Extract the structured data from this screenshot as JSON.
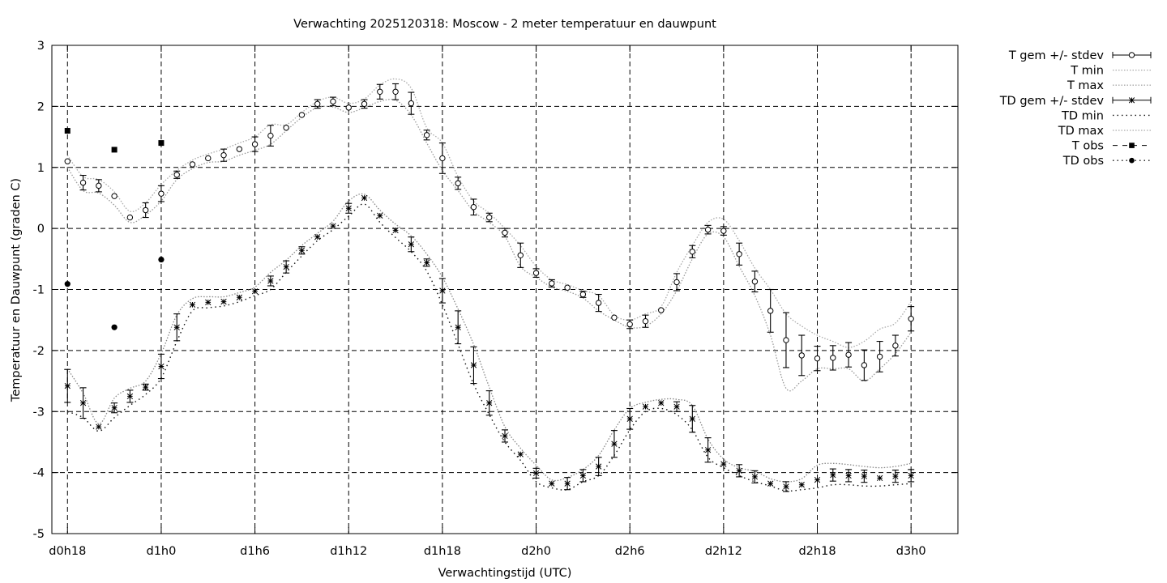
{
  "chart_data": {
    "type": "line",
    "title": "Verwachting 2025120318: Moscow - 2 meter temperatuur en dauwpunt",
    "xlabel": "Verwachtingstijd (UTC)",
    "ylabel": "Temperatuur en Dauwpunt (graden C)",
    "xlim": [
      -1,
      57
    ],
    "ylim": [
      -5,
      3
    ],
    "x_ticks": [
      {
        "x": 0,
        "label": "d0h18"
      },
      {
        "x": 6,
        "label": "d1h0"
      },
      {
        "x": 12,
        "label": "d1h6"
      },
      {
        "x": 18,
        "label": "d1h12"
      },
      {
        "x": 24,
        "label": "d1h18"
      },
      {
        "x": 30,
        "label": "d2h0"
      },
      {
        "x": 36,
        "label": "d2h6"
      },
      {
        "x": 42,
        "label": "d2h12"
      },
      {
        "x": 48,
        "label": "d2h18"
      },
      {
        "x": 54,
        "label": "d3h0"
      }
    ],
    "y_ticks": [
      3,
      2,
      1,
      0,
      -1,
      -2,
      -3,
      -4,
      -5
    ],
    "grid": true,
    "legend_position": "outside-right",
    "legend": [
      {
        "label": "T gem +/- stdev",
        "kind": "errbar",
        "marker": "circle"
      },
      {
        "label": "T min",
        "kind": "dotted"
      },
      {
        "label": "T max",
        "kind": "dotted"
      },
      {
        "label": "TD gem +/- stdev",
        "kind": "errbar",
        "marker": "star"
      },
      {
        "label": "TD min",
        "kind": "sparse-dotted"
      },
      {
        "label": "TD max",
        "kind": "dotted"
      },
      {
        "label": "T obs",
        "kind": "dashed",
        "marker": "square"
      },
      {
        "label": "TD obs",
        "kind": "sparse-dotted",
        "marker": "dot"
      }
    ],
    "series": {
      "t_mean": {
        "x": [
          0,
          1,
          2,
          3,
          4,
          5,
          6,
          7,
          8,
          9,
          10,
          11,
          12,
          13,
          14,
          15,
          16,
          17,
          18,
          19,
          20,
          21,
          22,
          23,
          24,
          25,
          26,
          27,
          28,
          29,
          30,
          31,
          32,
          33,
          34,
          35,
          36,
          37,
          38,
          39,
          40,
          41,
          42,
          43,
          44,
          45,
          46,
          47,
          48,
          49,
          50,
          51,
          52,
          53,
          54
        ],
        "y": [
          1.1,
          0.75,
          0.7,
          0.53,
          0.18,
          0.3,
          0.57,
          0.88,
          1.05,
          1.15,
          1.2,
          1.3,
          1.38,
          1.52,
          1.65,
          1.86,
          2.04,
          2.08,
          1.98,
          2.04,
          2.24,
          2.24,
          2.05,
          1.53,
          1.15,
          0.74,
          0.35,
          0.18,
          -0.07,
          -0.44,
          -0.73,
          -0.9,
          -0.97,
          -1.08,
          -1.22,
          -1.46,
          -1.57,
          -1.52,
          -1.34,
          -0.88,
          -0.38,
          -0.02,
          -0.04,
          -0.42,
          -0.87,
          -1.35,
          -1.83,
          -2.08,
          -2.13,
          -2.12,
          -2.07,
          -2.24,
          -2.1,
          -1.92,
          -1.48
        ],
        "sd": [
          0,
          0.12,
          0.1,
          0,
          0,
          0.12,
          0.13,
          0.06,
          0,
          0,
          0.1,
          0,
          0.12,
          0.17,
          0,
          0,
          0.07,
          0.07,
          0,
          0.07,
          0.12,
          0.13,
          0.18,
          0.08,
          0.25,
          0.1,
          0.13,
          0.07,
          0.07,
          0.2,
          0.07,
          0.06,
          0,
          0.05,
          0.14,
          0,
          0.07,
          0.1,
          0,
          0.14,
          0.1,
          0.07,
          0.07,
          0.18,
          0.17,
          0.35,
          0.45,
          0.33,
          0.2,
          0.2,
          0.2,
          0.25,
          0.25,
          0.17,
          0.2
        ]
      },
      "t_min": {
        "x": [
          0,
          1,
          2,
          3,
          4,
          5,
          6,
          7,
          8,
          9,
          10,
          11,
          12,
          13,
          14,
          15,
          16,
          17,
          18,
          19,
          20,
          21,
          22,
          23,
          24,
          25,
          26,
          27,
          28,
          29,
          30,
          31,
          32,
          33,
          34,
          35,
          36,
          37,
          38,
          39,
          40,
          41,
          42,
          43,
          44,
          45,
          46,
          47,
          48,
          49,
          50,
          51,
          52,
          53,
          54
        ],
        "y": [
          1.0,
          0.62,
          0.58,
          0.38,
          0.1,
          0.22,
          0.45,
          0.8,
          0.98,
          1.08,
          1.1,
          1.2,
          1.28,
          1.38,
          1.6,
          1.82,
          1.98,
          1.99,
          1.9,
          1.98,
          2.08,
          2.1,
          1.86,
          1.4,
          0.95,
          0.62,
          0.28,
          0.1,
          -0.13,
          -0.62,
          -0.8,
          -0.96,
          -1.03,
          -1.14,
          -1.35,
          -1.5,
          -1.62,
          -1.6,
          -1.4,
          -1.02,
          -0.5,
          -0.09,
          -0.14,
          -0.62,
          -1.1,
          -1.75,
          -2.62,
          -2.5,
          -2.3,
          -2.3,
          -2.3,
          -2.5,
          -2.3,
          -2.05,
          -1.7
        ]
      },
      "t_max": {
        "x": [
          0,
          1,
          2,
          3,
          4,
          5,
          6,
          7,
          8,
          9,
          10,
          11,
          12,
          13,
          14,
          15,
          16,
          17,
          18,
          19,
          20,
          21,
          22,
          23,
          24,
          25,
          26,
          27,
          28,
          29,
          30,
          31,
          32,
          33,
          34,
          35,
          36,
          37,
          38,
          39,
          40,
          41,
          42,
          43,
          44,
          45,
          46,
          47,
          48,
          49,
          50,
          51,
          52,
          53,
          54
        ],
        "y": [
          1.2,
          0.85,
          0.8,
          0.6,
          0.28,
          0.42,
          0.72,
          0.95,
          1.12,
          1.22,
          1.3,
          1.4,
          1.5,
          1.7,
          1.7,
          1.9,
          2.08,
          2.15,
          2.05,
          2.12,
          2.35,
          2.45,
          2.3,
          1.65,
          1.4,
          0.85,
          0.45,
          0.25,
          0.0,
          -0.28,
          -0.62,
          -0.84,
          -0.92,
          -1.02,
          -1.1,
          -1.42,
          -1.5,
          -1.4,
          -1.28,
          -0.72,
          -0.28,
          0.1,
          0.15,
          -0.2,
          -0.65,
          -1.0,
          -1.4,
          -1.6,
          -1.75,
          -1.85,
          -1.95,
          -1.85,
          -1.65,
          -1.55,
          -1.2
        ]
      },
      "td_mean": {
        "x": [
          0,
          1,
          2,
          3,
          4,
          5,
          6,
          7,
          8,
          9,
          10,
          11,
          12,
          13,
          14,
          15,
          16,
          17,
          18,
          19,
          20,
          21,
          22,
          23,
          24,
          25,
          26,
          27,
          28,
          29,
          30,
          31,
          32,
          33,
          34,
          35,
          36,
          37,
          38,
          39,
          40,
          41,
          42,
          43,
          44,
          45,
          46,
          47,
          48,
          49,
          50,
          51,
          52,
          53,
          54
        ],
        "y": [
          -2.58,
          -2.86,
          -3.25,
          -2.94,
          -2.75,
          -2.6,
          -2.26,
          -1.62,
          -1.25,
          -1.21,
          -1.2,
          -1.13,
          -1.03,
          -0.86,
          -0.63,
          -0.36,
          -0.14,
          0.04,
          0.33,
          0.5,
          0.21,
          -0.03,
          -0.26,
          -0.56,
          -1.02,
          -1.62,
          -2.24,
          -2.86,
          -3.4,
          -3.7,
          -4.01,
          -4.18,
          -4.18,
          -4.05,
          -3.9,
          -3.53,
          -3.12,
          -2.92,
          -2.86,
          -2.92,
          -3.12,
          -3.63,
          -3.86,
          -3.97,
          -4.07,
          -4.18,
          -4.23,
          -4.2,
          -4.12,
          -4.04,
          -4.05,
          -4.06,
          -4.09,
          -4.06,
          -4.05
        ]
      },
      "td_min": {
        "x": [
          0,
          1,
          2,
          3,
          4,
          5,
          6,
          7,
          8,
          9,
          10,
          11,
          12,
          13,
          14,
          15,
          16,
          17,
          18,
          19,
          20,
          21,
          22,
          23,
          24,
          25,
          26,
          27,
          28,
          29,
          30,
          31,
          32,
          33,
          34,
          35,
          36,
          37,
          38,
          39,
          40,
          41,
          42,
          43,
          44,
          45,
          46,
          47,
          48,
          49,
          50,
          51,
          52,
          53,
          54
        ],
        "y": [
          -3.0,
          -3.1,
          -3.32,
          -3.1,
          -2.9,
          -2.72,
          -2.45,
          -1.85,
          -1.35,
          -1.3,
          -1.27,
          -1.2,
          -1.1,
          -1.0,
          -0.72,
          -0.45,
          -0.2,
          -0.02,
          0.2,
          0.4,
          0.1,
          -0.15,
          -0.38,
          -0.7,
          -1.25,
          -1.9,
          -2.55,
          -3.05,
          -3.5,
          -3.8,
          -4.15,
          -4.25,
          -4.28,
          -4.15,
          -4.05,
          -3.72,
          -3.3,
          -3.0,
          -2.95,
          -3.05,
          -3.3,
          -3.75,
          -3.92,
          -4.05,
          -4.15,
          -4.22,
          -4.3,
          -4.28,
          -4.25,
          -4.2,
          -4.2,
          -4.22,
          -4.22,
          -4.2,
          -4.18
        ]
      },
      "td_max": {
        "x": [
          0,
          1,
          2,
          3,
          4,
          5,
          6,
          7,
          8,
          9,
          10,
          11,
          12,
          13,
          14,
          15,
          16,
          17,
          18,
          19,
          20,
          21,
          22,
          23,
          24,
          25,
          26,
          27,
          28,
          29,
          30,
          31,
          32,
          33,
          34,
          35,
          36,
          37,
          38,
          39,
          40,
          41,
          42,
          43,
          44,
          45,
          46,
          47,
          48,
          49,
          50,
          51,
          52,
          53,
          54
        ],
        "y": [
          -2.3,
          -2.7,
          -3.2,
          -2.78,
          -2.62,
          -2.5,
          -2.05,
          -1.42,
          -1.15,
          -1.12,
          -1.12,
          -1.05,
          -0.96,
          -0.72,
          -0.52,
          -0.28,
          -0.08,
          0.12,
          0.45,
          0.56,
          0.3,
          0.07,
          -0.12,
          -0.42,
          -0.8,
          -1.32,
          -1.9,
          -2.6,
          -3.25,
          -3.6,
          -3.88,
          -4.12,
          -4.08,
          -3.95,
          -3.72,
          -3.3,
          -2.95,
          -2.85,
          -2.8,
          -2.8,
          -2.9,
          -3.45,
          -3.78,
          -3.92,
          -3.98,
          -4.1,
          -4.15,
          -4.1,
          -3.88,
          -3.85,
          -3.87,
          -3.9,
          -3.92,
          -3.9,
          -3.85
        ]
      },
      "t_obs": {
        "x": [
          0,
          3,
          6
        ],
        "y": [
          1.6,
          1.29,
          1.4
        ]
      },
      "td_obs": {
        "x": [
          0,
          3,
          6
        ],
        "y": [
          -0.91,
          -1.62,
          -0.51
        ]
      }
    }
  }
}
